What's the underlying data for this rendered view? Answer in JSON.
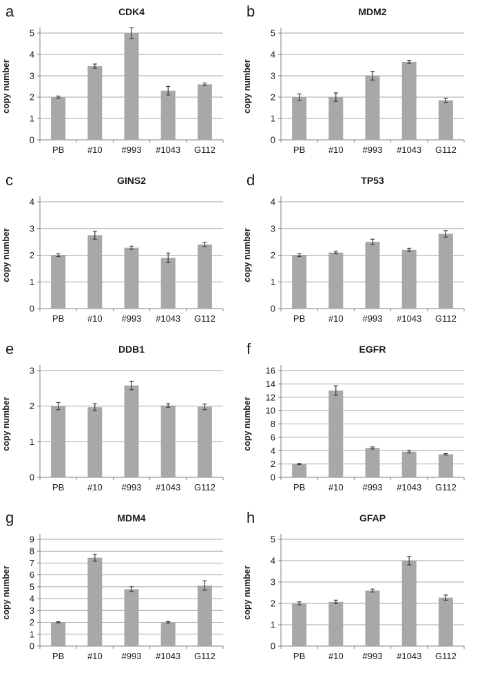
{
  "figure": {
    "background": "#ffffff",
    "shared_ylabel": "copy number",
    "shared_categories": [
      "PB",
      "#10",
      "#993",
      "#1043",
      "G112"
    ],
    "colors": {
      "bar": "#a8a8a8",
      "gridline": "#a6a6a6",
      "axis": "#7f7f7f",
      "error_bar": "#3a3a3a",
      "text": "#1a1a1a"
    }
  },
  "chart_data": [
    {
      "type": "bar",
      "panel_letter": "a",
      "title": "CDK4",
      "xlabel": "",
      "ylabel": "copy number",
      "categories": [
        "PB",
        "#10",
        "#993",
        "#1043",
        "G112"
      ],
      "values": [
        2.0,
        3.45,
        5.0,
        2.3,
        2.6
      ],
      "errors": [
        0.05,
        0.1,
        0.25,
        0.2,
        0.06
      ],
      "ylim": [
        0,
        5
      ],
      "ytick_step": 1,
      "grid": true,
      "legend": "none"
    },
    {
      "type": "bar",
      "panel_letter": "b",
      "title": "MDM2",
      "xlabel": "",
      "ylabel": "copy number",
      "categories": [
        "PB",
        "#10",
        "#993",
        "#1043",
        "G112"
      ],
      "values": [
        2.0,
        2.0,
        3.0,
        3.65,
        1.85
      ],
      "errors": [
        0.15,
        0.2,
        0.2,
        0.07,
        0.1
      ],
      "ylim": [
        0,
        5
      ],
      "ytick_step": 1,
      "grid": true,
      "legend": "none"
    },
    {
      "type": "bar",
      "panel_letter": "c",
      "title": "GINS2",
      "xlabel": "",
      "ylabel": "copy number",
      "categories": [
        "PB",
        "#10",
        "#993",
        "#1043",
        "G112"
      ],
      "values": [
        2.0,
        2.75,
        2.28,
        1.9,
        2.4
      ],
      "errors": [
        0.05,
        0.15,
        0.06,
        0.18,
        0.08
      ],
      "ylim": [
        0,
        4
      ],
      "ytick_step": 1,
      "grid": true,
      "legend": "none"
    },
    {
      "type": "bar",
      "panel_letter": "d",
      "title": "TP53",
      "xlabel": "",
      "ylabel": "copy number",
      "categories": [
        "PB",
        "#10",
        "#993",
        "#1043",
        "G112"
      ],
      "values": [
        2.0,
        2.1,
        2.5,
        2.2,
        2.8
      ],
      "errors": [
        0.05,
        0.05,
        0.1,
        0.06,
        0.12
      ],
      "ylim": [
        0,
        4
      ],
      "ytick_step": 1,
      "grid": true,
      "legend": "none"
    },
    {
      "type": "bar",
      "panel_letter": "e",
      "title": "DDB1",
      "xlabel": "",
      "ylabel": "copy number",
      "categories": [
        "PB",
        "#10",
        "#993",
        "#1043",
        "G112"
      ],
      "values": [
        2.0,
        1.97,
        2.58,
        2.02,
        1.98
      ],
      "errors": [
        0.1,
        0.1,
        0.12,
        0.05,
        0.08
      ],
      "ylim": [
        0,
        3
      ],
      "ytick_step": 1,
      "grid": true,
      "legend": "none"
    },
    {
      "type": "bar",
      "panel_letter": "f",
      "title": "EGFR",
      "xlabel": "",
      "ylabel": "copy number",
      "categories": [
        "PB",
        "#10",
        "#993",
        "#1043",
        "G112"
      ],
      "values": [
        2.0,
        13.0,
        4.4,
        3.85,
        3.45
      ],
      "errors": [
        0.08,
        0.7,
        0.15,
        0.2,
        0.1
      ],
      "ylim": [
        0,
        16
      ],
      "ytick_step": 2,
      "grid": true,
      "legend": "none"
    },
    {
      "type": "bar",
      "panel_letter": "g",
      "title": "MDM4",
      "xlabel": "",
      "ylabel": "copy number",
      "categories": [
        "PB",
        "#10",
        "#993",
        "#1043",
        "G112"
      ],
      "values": [
        2.0,
        7.45,
        4.8,
        2.0,
        5.1
      ],
      "errors": [
        0.05,
        0.3,
        0.2,
        0.07,
        0.4
      ],
      "ylim": [
        0,
        9
      ],
      "ytick_step": 1,
      "grid": true,
      "legend": "none"
    },
    {
      "type": "bar",
      "panel_letter": "h",
      "title": "GFAP",
      "xlabel": "",
      "ylabel": "copy number",
      "categories": [
        "PB",
        "#10",
        "#993",
        "#1043",
        "G112"
      ],
      "values": [
        2.0,
        2.07,
        2.6,
        4.0,
        2.27
      ],
      "errors": [
        0.07,
        0.08,
        0.07,
        0.2,
        0.12
      ],
      "ylim": [
        0,
        5
      ],
      "ytick_step": 1,
      "grid": true,
      "legend": "none"
    }
  ]
}
